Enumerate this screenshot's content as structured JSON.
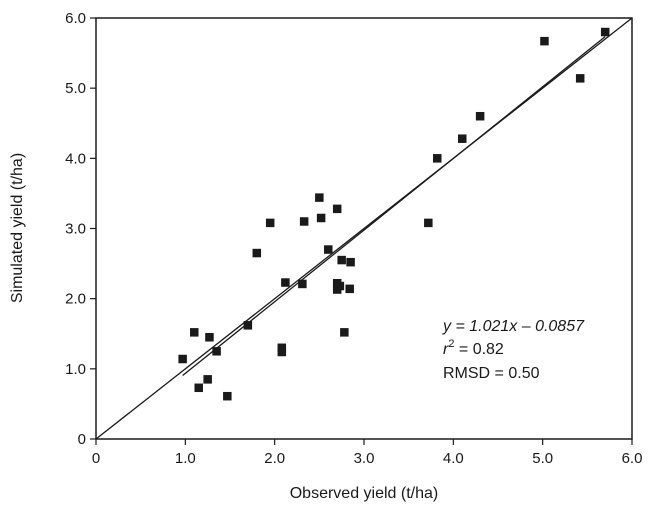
{
  "chart_data": {
    "type": "scatter",
    "xlabel": "Observed yield (t/ha)",
    "ylabel": "Simulated yield (t/ha)",
    "xlim": [
      0,
      6
    ],
    "ylim": [
      0,
      6
    ],
    "x_ticks": [
      "0",
      "1.0",
      "2.0",
      "3.0",
      "4.0",
      "5.0",
      "6.0"
    ],
    "y_ticks": [
      "0",
      "1.0",
      "2.0",
      "3.0",
      "4.0",
      "5.0",
      "6.0"
    ],
    "grid": false,
    "points": [
      {
        "x": 0.97,
        "y": 1.14
      },
      {
        "x": 1.1,
        "y": 1.52
      },
      {
        "x": 1.15,
        "y": 0.73
      },
      {
        "x": 1.25,
        "y": 0.85
      },
      {
        "x": 1.27,
        "y": 1.45
      },
      {
        "x": 1.35,
        "y": 1.25
      },
      {
        "x": 1.47,
        "y": 0.61
      },
      {
        "x": 1.7,
        "y": 1.62
      },
      {
        "x": 1.8,
        "y": 2.65
      },
      {
        "x": 1.95,
        "y": 3.08
      },
      {
        "x": 2.08,
        "y": 1.3
      },
      {
        "x": 2.08,
        "y": 1.24
      },
      {
        "x": 2.12,
        "y": 2.23
      },
      {
        "x": 2.31,
        "y": 2.21
      },
      {
        "x": 2.33,
        "y": 3.1
      },
      {
        "x": 2.5,
        "y": 3.44
      },
      {
        "x": 2.52,
        "y": 3.15
      },
      {
        "x": 2.6,
        "y": 2.7
      },
      {
        "x": 2.7,
        "y": 3.28
      },
      {
        "x": 2.7,
        "y": 2.22
      },
      {
        "x": 2.7,
        "y": 2.13
      },
      {
        "x": 2.73,
        "y": 2.18
      },
      {
        "x": 2.75,
        "y": 2.55
      },
      {
        "x": 2.78,
        "y": 1.52
      },
      {
        "x": 2.85,
        "y": 2.52
      },
      {
        "x": 2.84,
        "y": 2.14
      },
      {
        "x": 3.72,
        "y": 3.08
      },
      {
        "x": 3.82,
        "y": 4.0
      },
      {
        "x": 4.1,
        "y": 4.28
      },
      {
        "x": 4.3,
        "y": 4.6
      },
      {
        "x": 5.02,
        "y": 5.67
      },
      {
        "x": 5.42,
        "y": 5.14
      },
      {
        "x": 5.7,
        "y": 5.8
      }
    ],
    "lines": [
      {
        "kind": "one-to-one",
        "x": [
          0,
          6
        ],
        "y": [
          0,
          6
        ]
      },
      {
        "kind": "regression",
        "slope": 1.021,
        "intercept": -0.0857,
        "x": [
          0.97,
          5.7
        ]
      }
    ],
    "annotations": {
      "equation": "y = 1.021x – 0.0857",
      "r2_prefix": "r",
      "r2_exp": "2",
      "r2_value": " = 0.82",
      "rmsd": "RMSD = 0.50"
    }
  }
}
